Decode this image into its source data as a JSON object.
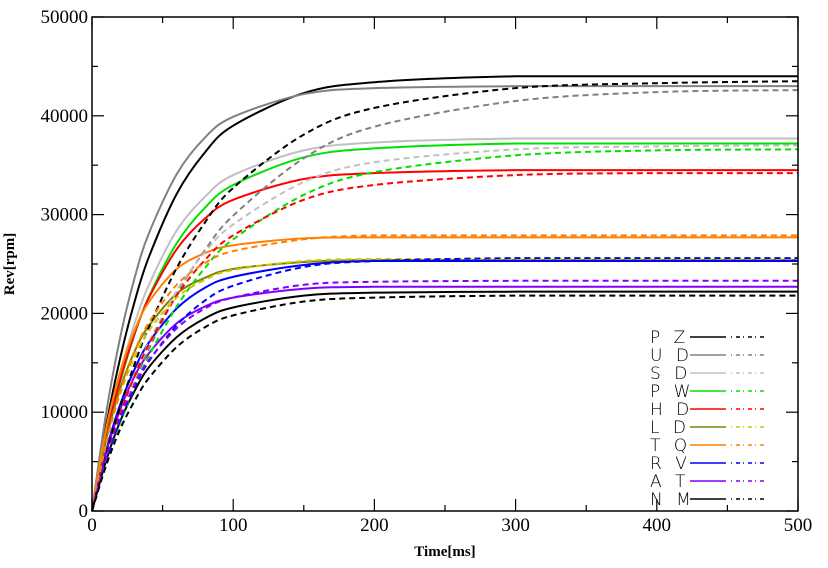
{
  "chart_data": {
    "type": "line",
    "title": "",
    "xlabel": "Time[ms]",
    "ylabel": "Rev[rpm]",
    "xlim": [
      0,
      500
    ],
    "ylim": [
      0,
      50000
    ],
    "xticks": [
      0,
      100,
      200,
      300,
      400,
      500
    ],
    "yticks": [
      0,
      10000,
      20000,
      30000,
      40000,
      50000
    ],
    "grid": false,
    "legend_position": "bottom-right",
    "x": [
      0,
      10,
      20,
      30,
      40,
      60,
      80,
      100,
      150,
      200,
      300,
      400,
      500
    ],
    "series": [
      {
        "name": "P Z",
        "variant": "solid",
        "color": "#000000",
        "values": [
          0,
          8600,
          15500,
          21100,
          25600,
          32100,
          36300,
          39000,
          42300,
          43400,
          44000,
          44000,
          44000
        ]
      },
      {
        "name": "P Z",
        "variant": "dashed",
        "color": "#000000",
        "values": [
          0,
          5700,
          10600,
          14800,
          18500,
          24600,
          29200,
          32700,
          38100,
          40800,
          42800,
          43300,
          43500
        ]
      },
      {
        "name": "U D",
        "variant": "solid",
        "color": "#808080",
        "values": [
          0,
          9900,
          17600,
          23500,
          28000,
          34100,
          37800,
          39900,
          42200,
          42800,
          43000,
          43000,
          43000
        ]
      },
      {
        "name": "U D",
        "variant": "dashed",
        "color": "#808080",
        "values": [
          0,
          4800,
          9100,
          12900,
          16300,
          22000,
          26400,
          29900,
          35700,
          38900,
          41500,
          42400,
          42600
        ]
      },
      {
        "name": "S D",
        "variant": "solid",
        "color": "#c0c0c0",
        "values": [
          0,
          7800,
          14000,
          18900,
          22800,
          28400,
          31800,
          34000,
          36500,
          37300,
          37700,
          37700,
          37700
        ]
      },
      {
        "name": "S D",
        "variant": "dashed",
        "color": "#c0c0c0",
        "values": [
          0,
          5300,
          9800,
          13700,
          17000,
          22300,
          26200,
          29000,
          33300,
          35300,
          36600,
          36900,
          37000
        ]
      },
      {
        "name": "P W",
        "variant": "solid",
        "color": "#00e000",
        "values": [
          0,
          7300,
          13100,
          17800,
          21600,
          27100,
          30700,
          33000,
          35800,
          36700,
          37200,
          37200,
          37200
        ]
      },
      {
        "name": "P W",
        "variant": "dashed",
        "color": "#00e000",
        "values": [
          0,
          4800,
          8900,
          12500,
          15600,
          20700,
          24600,
          27500,
          32000,
          34300,
          36000,
          36500,
          36600
        ]
      },
      {
        "name": "H D",
        "variant": "solid",
        "color": "#ff0000",
        "values": [
          0,
          7500,
          13300,
          17900,
          21500,
          26500,
          29600,
          31500,
          33600,
          34200,
          34500,
          34500,
          34500
        ]
      },
      {
        "name": "H D",
        "variant": "dashed",
        "color": "#ff0000",
        "values": [
          0,
          5300,
          9800,
          13600,
          16800,
          21800,
          25400,
          27900,
          31500,
          33000,
          34000,
          34200,
          34200
        ]
      },
      {
        "name": "L D",
        "variant": "solid",
        "color": "#808000",
        "values": [
          0,
          7200,
          12400,
          16100,
          18700,
          22000,
          23600,
          24500,
          25200,
          25400,
          25400,
          25400,
          25400
        ]
      },
      {
        "name": "L D",
        "variant": "dashed",
        "color": "#c8c800",
        "values": [
          0,
          6800,
          11900,
          15500,
          18200,
          21600,
          23400,
          24400,
          25300,
          25500,
          25500,
          25500,
          25500
        ]
      },
      {
        "name": "T Q",
        "variant": "solid",
        "color": "#ff8000",
        "values": [
          0,
          8300,
          14100,
          18200,
          21100,
          24500,
          26100,
          26900,
          27600,
          27700,
          27700,
          27700,
          27700
        ]
      },
      {
        "name": "T Q",
        "variant": "dashed",
        "color": "#ff8000",
        "values": [
          0,
          6900,
          12100,
          16100,
          19000,
          22900,
          25100,
          26300,
          27500,
          27900,
          27900,
          27900,
          27900
        ]
      },
      {
        "name": "R V",
        "variant": "solid",
        "color": "#0000ff",
        "values": [
          0,
          6100,
          10800,
          14300,
          17000,
          20500,
          22600,
          23700,
          24900,
          25300,
          25300,
          25300,
          25300
        ]
      },
      {
        "name": "R V",
        "variant": "dashed",
        "color": "#0000ff",
        "values": [
          0,
          5100,
          9200,
          12500,
          15100,
          18800,
          21300,
          22800,
          24700,
          25300,
          25600,
          25600,
          25600
        ]
      },
      {
        "name": "A T",
        "variant": "solid",
        "color": "#8000ff",
        "values": [
          0,
          5900,
          10300,
          13600,
          15900,
          19000,
          20700,
          21600,
          22500,
          22700,
          22700,
          22700,
          22700
        ]
      },
      {
        "name": "A T",
        "variant": "dashed",
        "color": "#8000ff",
        "values": [
          0,
          5400,
          9500,
          12700,
          15200,
          18500,
          20500,
          21600,
          22900,
          23200,
          23300,
          23300,
          23300
        ]
      },
      {
        "name": "N M",
        "variant": "solid",
        "color": "#000000",
        "values": [
          0,
          5100,
          9100,
          12100,
          14500,
          17600,
          19500,
          20600,
          21800,
          22100,
          22200,
          22200,
          22200
        ]
      },
      {
        "name": "N M",
        "variant": "dashed",
        "color": "#000000",
        "values": [
          0,
          4600,
          8300,
          11100,
          13400,
          16600,
          18600,
          19800,
          21200,
          21600,
          21800,
          21800,
          21800
        ]
      }
    ],
    "legend": [
      {
        "label": "P Z",
        "solid": "#000000",
        "dashed": "#000000"
      },
      {
        "label": "U D",
        "solid": "#808080",
        "dashed": "#808080"
      },
      {
        "label": "S D",
        "solid": "#c0c0c0",
        "dashed": "#c0c0c0"
      },
      {
        "label": "P W",
        "solid": "#00e000",
        "dashed": "#00e000"
      },
      {
        "label": "H D",
        "solid": "#ff0000",
        "dashed": "#ff0000"
      },
      {
        "label": "L D",
        "solid": "#808000",
        "dashed": "#c8c800"
      },
      {
        "label": "T Q",
        "solid": "#ff8000",
        "dashed": "#ff8000"
      },
      {
        "label": "R V",
        "solid": "#0000ff",
        "dashed": "#0000ff"
      },
      {
        "label": "A T",
        "solid": "#8000ff",
        "dashed": "#8000ff"
      },
      {
        "label": "N M",
        "solid": "#000000",
        "dashed": "#000000"
      }
    ]
  }
}
